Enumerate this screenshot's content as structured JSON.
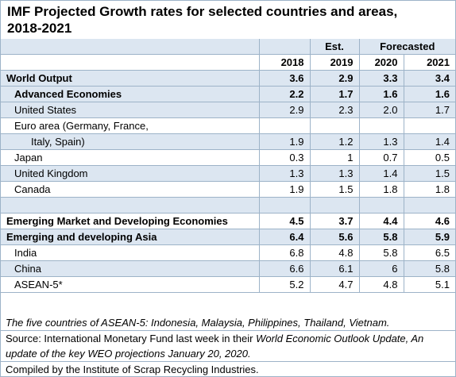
{
  "title_line1": "IMF Projected Growth rates for selected countries and areas,",
  "title_line2": "2018-2021",
  "header": {
    "est": "Est.",
    "forecasted": "Forecasted",
    "years": [
      "2018",
      "2019",
      "2020",
      "2021"
    ]
  },
  "rows": [
    {
      "label": "World Output",
      "v": [
        "3.6",
        "2.9",
        "3.3",
        "3.4"
      ]
    },
    {
      "label": "Advanced Economies",
      "v": [
        "2.2",
        "1.7",
        "1.6",
        "1.6"
      ]
    },
    {
      "label": "United States",
      "v": [
        "2.9",
        "2.3",
        "2.0",
        "1.7"
      ]
    },
    {
      "label": "Euro area (Germany, France,",
      "v": [
        "",
        "",
        "",
        ""
      ]
    },
    {
      "label": "Italy, Spain)",
      "v": [
        "1.9",
        "1.2",
        "1.3",
        "1.4"
      ]
    },
    {
      "label": "Japan",
      "v": [
        "0.3",
        "1",
        "0.7",
        "0.5"
      ]
    },
    {
      "label": "United Kingdom",
      "v": [
        "1.3",
        "1.3",
        "1.4",
        "1.5"
      ]
    },
    {
      "label": "Canada",
      "v": [
        "1.9",
        "1.5",
        "1.8",
        "1.8"
      ]
    },
    {
      "label": "Emerging Market and Developing Economies",
      "v": [
        "4.5",
        "3.7",
        "4.4",
        "4.6"
      ]
    },
    {
      "label": "Emerging and developing Asia",
      "v": [
        "6.4",
        "5.6",
        "5.8",
        "5.9"
      ]
    },
    {
      "label": "India",
      "v": [
        "6.8",
        "4.8",
        "5.8",
        "6.5"
      ]
    },
    {
      "label": "China",
      "v": [
        "6.6",
        "6.1",
        "6",
        "5.8"
      ]
    },
    {
      "label": "ASEAN-5*",
      "v": [
        "5.2",
        "4.7",
        "4.8",
        "5.1"
      ]
    }
  ],
  "notes": {
    "asean": "The five countries of ASEAN-5:  Indonesia, Malaysia, Philippines, Thailand, Vietnam.",
    "source_prefix": "Source: International Monetary Fund last week in their ",
    "source_title": "World Economic Outlook Update, An update of the key WEO projections January 20, 2020.",
    "compiled": "Compiled by the Institute of Scrap Recycling Industries."
  }
}
